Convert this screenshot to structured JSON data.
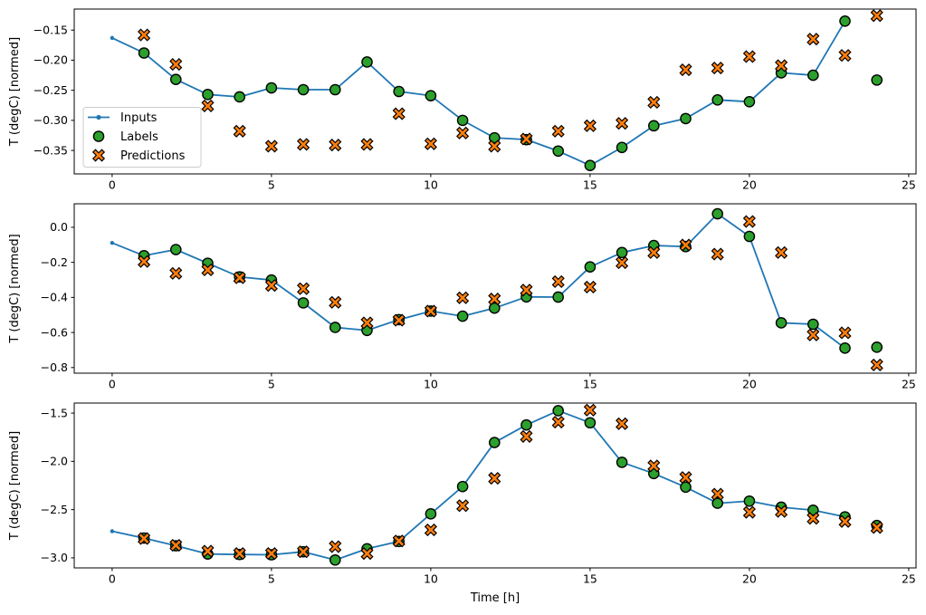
{
  "figure": {
    "xlabel": "Time [h]",
    "ylabel": "T (degC) [normed]",
    "background": "#ffffff"
  },
  "colors": {
    "inputs": "#1f77b4",
    "labels": "#2ca02c",
    "predictions": "#ff7f0e",
    "marker_edge": "#000000",
    "axis": "#000000",
    "legend_border": "#cccccc",
    "legend_fill": "#ffffff"
  },
  "legend": {
    "items": [
      {
        "label": "Inputs",
        "marker": "line-dot"
      },
      {
        "label": "Labels",
        "marker": "circle"
      },
      {
        "label": "Predictions",
        "marker": "x"
      }
    ]
  },
  "chart_data": [
    {
      "type": "line",
      "title": "",
      "ylabel": "T (degC) [normed]",
      "xlabel": "",
      "xlim": [
        -1.19,
        25.23
      ],
      "ylim": [
        -0.389,
        -0.115
      ],
      "grid": false,
      "legend_position": "upper-left-offset",
      "xticks": [
        0,
        5,
        10,
        15,
        20,
        25
      ],
      "yticks": [
        {
          "v": -0.15,
          "label": "−0.15"
        },
        {
          "v": -0.2,
          "label": "−0.20"
        },
        {
          "v": -0.25,
          "label": "−0.25"
        },
        {
          "v": -0.3,
          "label": "−0.30"
        },
        {
          "v": -0.35,
          "label": "−0.35"
        }
      ],
      "series": [
        {
          "name": "Inputs",
          "kind": "line-dot",
          "x": [
            0,
            1,
            2,
            3,
            4,
            5,
            6,
            7,
            8,
            9,
            10,
            11,
            12,
            13,
            14,
            15,
            16,
            17,
            18,
            19,
            20,
            21,
            22,
            23
          ],
          "y": [
            -0.163,
            -0.188,
            -0.232,
            -0.257,
            -0.261,
            -0.246,
            -0.249,
            -0.249,
            -0.203,
            -0.252,
            -0.259,
            -0.3,
            -0.329,
            -0.332,
            -0.351,
            -0.375,
            -0.345,
            -0.309,
            -0.297,
            -0.266,
            -0.269,
            -0.221,
            -0.225,
            -0.135
          ]
        },
        {
          "name": "Labels",
          "kind": "circle",
          "x": [
            1,
            2,
            3,
            4,
            5,
            6,
            7,
            8,
            9,
            10,
            11,
            12,
            13,
            14,
            15,
            16,
            17,
            18,
            19,
            20,
            21,
            22,
            23,
            24
          ],
          "y": [
            -0.188,
            -0.232,
            -0.257,
            -0.261,
            -0.246,
            -0.249,
            -0.249,
            -0.203,
            -0.252,
            -0.259,
            -0.3,
            -0.329,
            -0.332,
            -0.351,
            -0.375,
            -0.345,
            -0.309,
            -0.297,
            -0.266,
            -0.269,
            -0.221,
            -0.225,
            -0.135,
            -0.233
          ]
        },
        {
          "name": "Predictions",
          "kind": "x",
          "x": [
            1,
            2,
            3,
            4,
            5,
            6,
            7,
            8,
            9,
            10,
            11,
            12,
            13,
            14,
            15,
            16,
            17,
            18,
            19,
            20,
            21,
            22,
            23,
            24
          ],
          "y": [
            -0.158,
            -0.207,
            -0.276,
            -0.318,
            -0.343,
            -0.34,
            -0.341,
            -0.34,
            -0.289,
            -0.339,
            -0.321,
            -0.343,
            -0.331,
            -0.318,
            -0.309,
            -0.305,
            -0.27,
            -0.216,
            -0.213,
            -0.194,
            -0.209,
            -0.165,
            -0.192,
            -0.126
          ]
        }
      ]
    },
    {
      "type": "line",
      "title": "",
      "ylabel": "T (degC) [normed]",
      "xlabel": "",
      "xlim": [
        -1.19,
        25.23
      ],
      "ylim": [
        -0.832,
        0.134
      ],
      "grid": false,
      "xticks": [
        0,
        5,
        10,
        15,
        20,
        25
      ],
      "yticks": [
        {
          "v": 0.0,
          "label": "0.0"
        },
        {
          "v": -0.2,
          "label": "−0.2"
        },
        {
          "v": -0.4,
          "label": "−0.4"
        },
        {
          "v": -0.6,
          "label": "−0.6"
        },
        {
          "v": -0.8,
          "label": "−0.8"
        }
      ],
      "series": [
        {
          "name": "Inputs",
          "kind": "line-dot",
          "x": [
            0,
            1,
            2,
            3,
            4,
            5,
            6,
            7,
            8,
            9,
            10,
            11,
            12,
            13,
            14,
            15,
            16,
            17,
            18,
            19,
            20,
            21,
            22,
            23
          ],
          "y": [
            -0.089,
            -0.162,
            -0.127,
            -0.205,
            -0.283,
            -0.301,
            -0.431,
            -0.571,
            -0.588,
            -0.527,
            -0.478,
            -0.507,
            -0.461,
            -0.397,
            -0.398,
            -0.226,
            -0.144,
            -0.104,
            -0.11,
            0.077,
            -0.052,
            -0.545,
            -0.553,
            -0.689
          ]
        },
        {
          "name": "Labels",
          "kind": "circle",
          "x": [
            1,
            2,
            3,
            4,
            5,
            6,
            7,
            8,
            9,
            10,
            11,
            12,
            13,
            14,
            15,
            16,
            17,
            18,
            19,
            20,
            21,
            22,
            23,
            24
          ],
          "y": [
            -0.162,
            -0.127,
            -0.205,
            -0.283,
            -0.301,
            -0.431,
            -0.571,
            -0.588,
            -0.527,
            -0.478,
            -0.507,
            -0.461,
            -0.397,
            -0.398,
            -0.226,
            -0.144,
            -0.104,
            -0.11,
            0.077,
            -0.052,
            -0.545,
            -0.553,
            -0.689,
            -0.684
          ]
        },
        {
          "name": "Predictions",
          "kind": "x",
          "x": [
            1,
            2,
            3,
            4,
            5,
            6,
            7,
            8,
            9,
            10,
            11,
            12,
            13,
            14,
            15,
            16,
            17,
            18,
            19,
            20,
            21,
            22,
            23,
            24
          ],
          "y": [
            -0.195,
            -0.263,
            -0.243,
            -0.288,
            -0.332,
            -0.35,
            -0.428,
            -0.545,
            -0.53,
            -0.478,
            -0.402,
            -0.409,
            -0.358,
            -0.31,
            -0.341,
            -0.202,
            -0.144,
            -0.101,
            -0.153,
            0.033,
            -0.144,
            -0.614,
            -0.602,
            -0.785
          ]
        }
      ]
    },
    {
      "type": "line",
      "title": "",
      "ylabel": "T (degC) [normed]",
      "xlabel": "Time [h]",
      "xlim": [
        -1.19,
        25.23
      ],
      "ylim": [
        -3.104,
        -1.396
      ],
      "grid": false,
      "xticks": [
        0,
        5,
        10,
        15,
        20,
        25
      ],
      "yticks": [
        {
          "v": -1.5,
          "label": "−1.5"
        },
        {
          "v": -2.0,
          "label": "−2.0"
        },
        {
          "v": -2.5,
          "label": "−2.5"
        },
        {
          "v": -3.0,
          "label": "−3.0"
        }
      ],
      "series": [
        {
          "name": "Inputs",
          "kind": "line-dot",
          "x": [
            0,
            1,
            2,
            3,
            4,
            5,
            6,
            7,
            8,
            9,
            10,
            11,
            12,
            13,
            14,
            15,
            16,
            17,
            18,
            19,
            20,
            21,
            22,
            23
          ],
          "y": [
            -2.724,
            -2.795,
            -2.874,
            -2.96,
            -2.965,
            -2.968,
            -2.937,
            -3.022,
            -2.906,
            -2.83,
            -2.544,
            -2.261,
            -1.805,
            -1.623,
            -1.475,
            -1.6,
            -2.01,
            -2.126,
            -2.267,
            -2.434,
            -2.412,
            -2.475,
            -2.506,
            -2.575
          ]
        },
        {
          "name": "Labels",
          "kind": "circle",
          "x": [
            1,
            2,
            3,
            4,
            5,
            6,
            7,
            8,
            9,
            10,
            11,
            12,
            13,
            14,
            15,
            16,
            17,
            18,
            19,
            20,
            21,
            22,
            23,
            24
          ],
          "y": [
            -2.795,
            -2.874,
            -2.96,
            -2.965,
            -2.968,
            -2.937,
            -3.022,
            -2.906,
            -2.83,
            -2.544,
            -2.261,
            -1.805,
            -1.623,
            -1.475,
            -1.6,
            -2.01,
            -2.126,
            -2.267,
            -2.434,
            -2.412,
            -2.475,
            -2.506,
            -2.575,
            -2.664
          ]
        },
        {
          "name": "Predictions",
          "kind": "x",
          "x": [
            1,
            2,
            3,
            4,
            5,
            6,
            7,
            8,
            9,
            10,
            11,
            12,
            13,
            14,
            15,
            16,
            17,
            18,
            19,
            20,
            21,
            22,
            23,
            24
          ],
          "y": [
            -2.8,
            -2.87,
            -2.93,
            -2.955,
            -2.955,
            -2.937,
            -2.884,
            -2.955,
            -2.825,
            -2.71,
            -2.459,
            -2.176,
            -1.742,
            -1.594,
            -1.469,
            -1.61,
            -2.047,
            -2.167,
            -2.34,
            -2.528,
            -2.519,
            -2.591,
            -2.623,
            -2.686
          ]
        }
      ]
    }
  ]
}
